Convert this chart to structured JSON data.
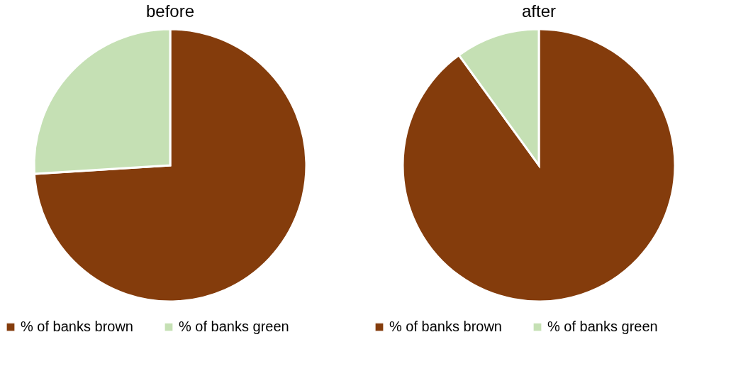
{
  "chart_data": [
    {
      "type": "pie",
      "title": "before",
      "categories": [
        "% of banks brown",
        "% of banks green"
      ],
      "values": [
        74,
        26
      ],
      "colors": [
        "#843c0c",
        "#c5e0b4"
      ],
      "legend": "bottom"
    },
    {
      "type": "pie",
      "title": "after",
      "categories": [
        "% of banks brown",
        "% of banks green"
      ],
      "values": [
        90,
        10
      ],
      "colors": [
        "#843c0c",
        "#c5e0b4"
      ],
      "legend": "bottom"
    }
  ]
}
